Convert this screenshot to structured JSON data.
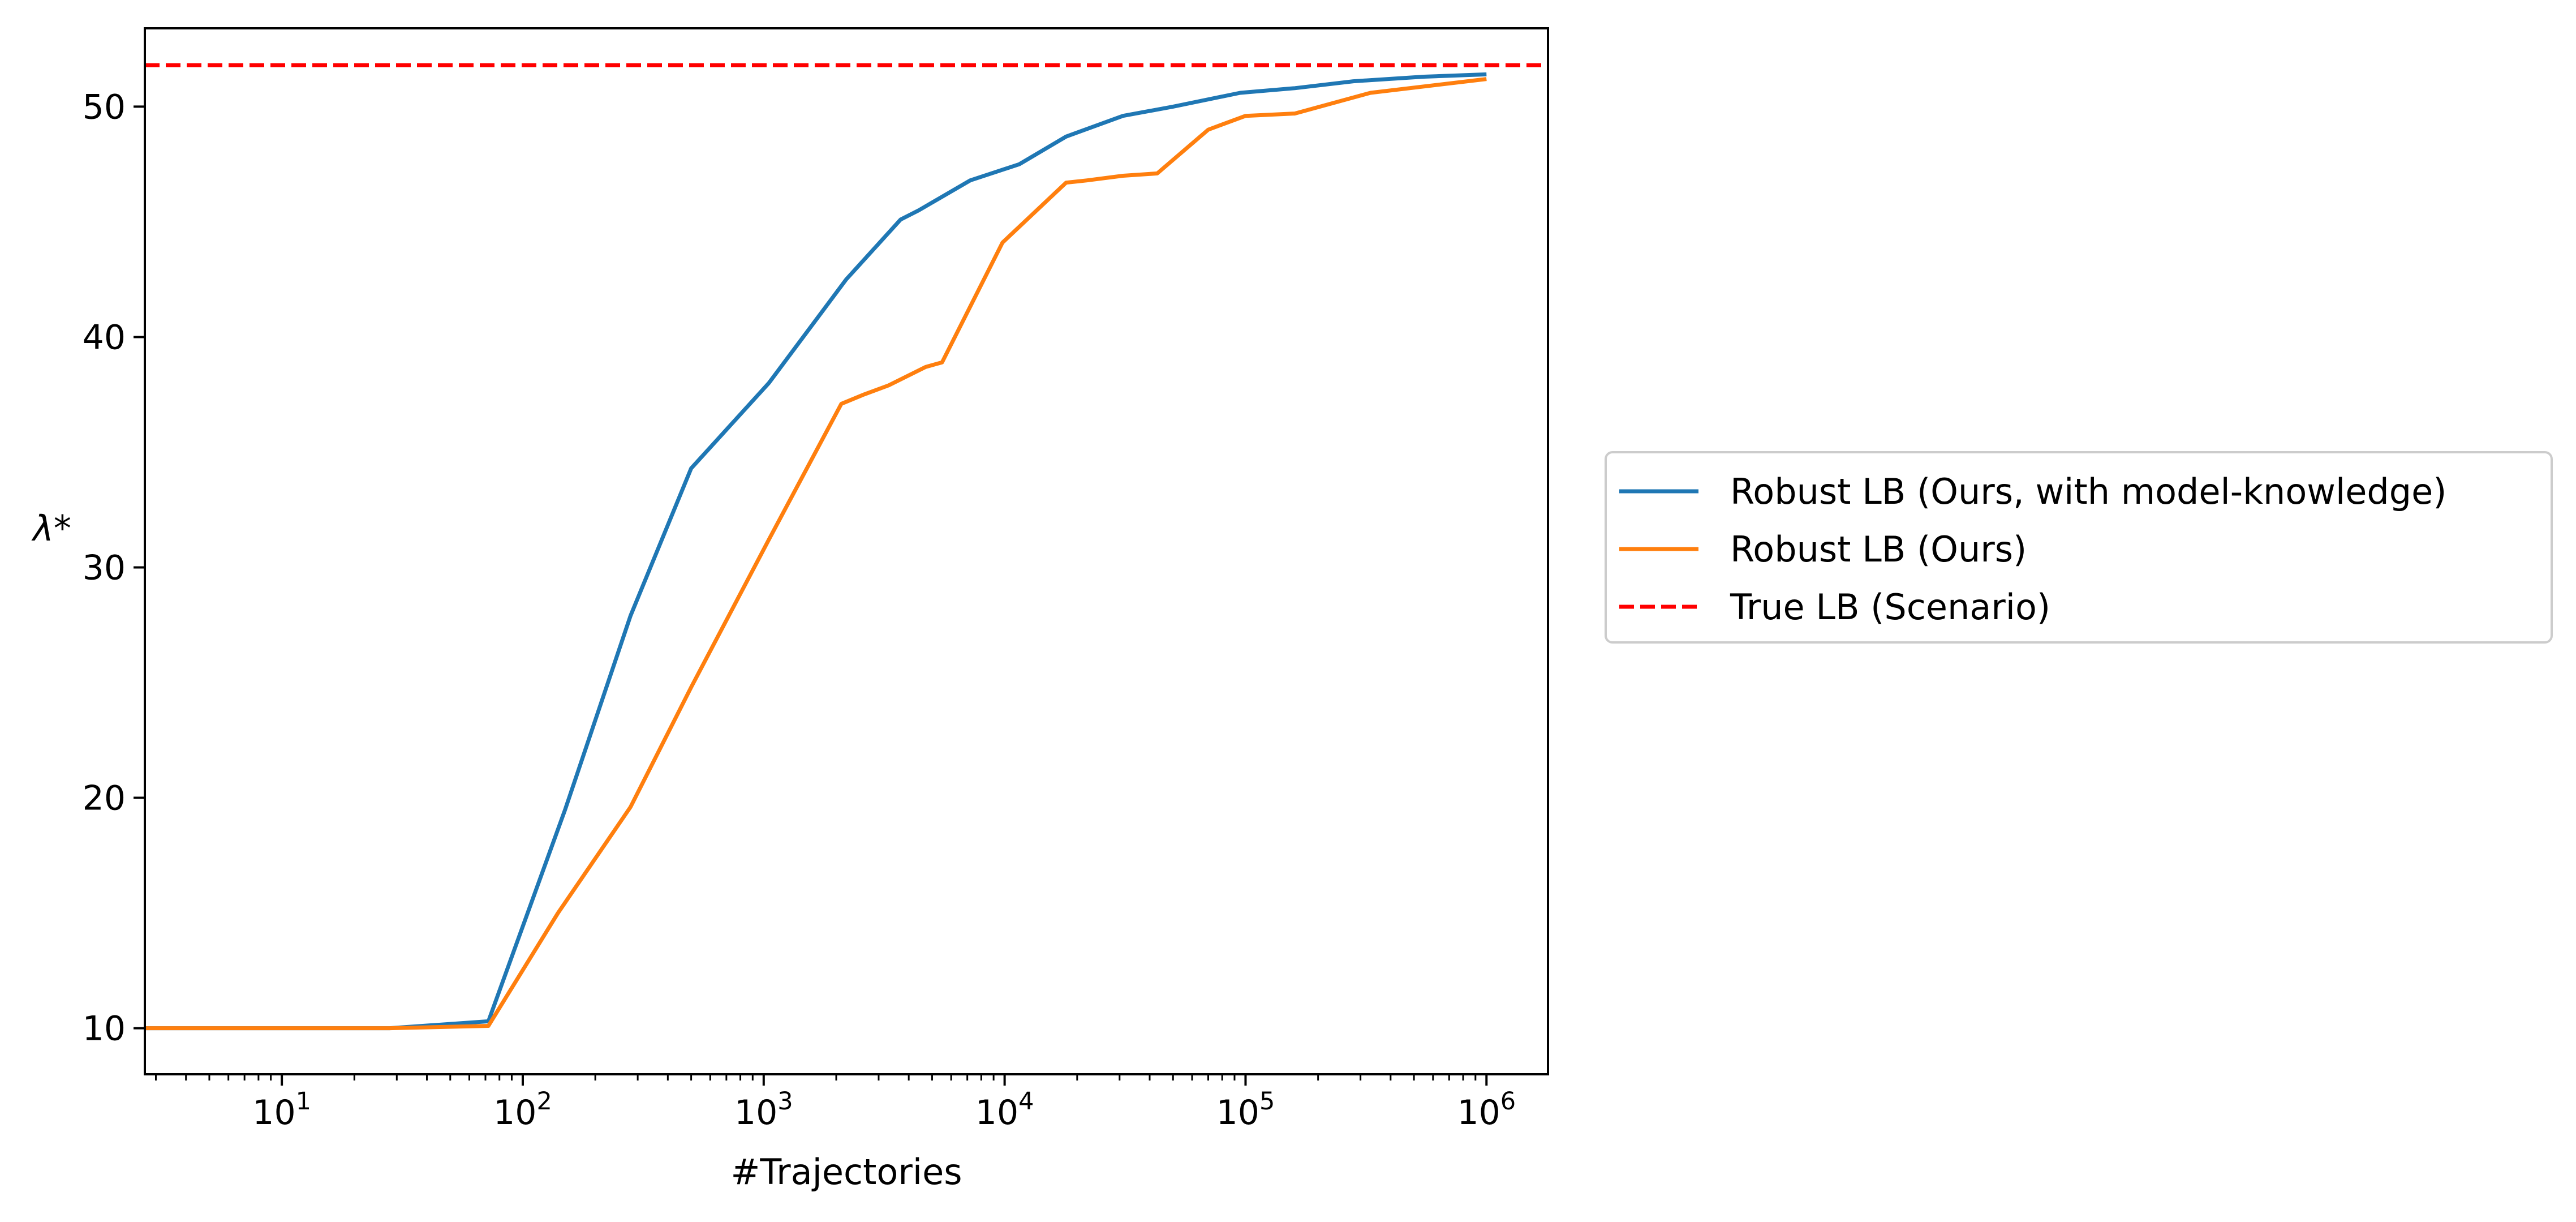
{
  "chart_data": {
    "type": "line",
    "title": "",
    "xlabel": "#Trajectories",
    "ylabel": "λ*",
    "xscale": "log",
    "xlim": [
      2.7,
      1800000
    ],
    "ylim": [
      8.0,
      53.4
    ],
    "x_ticks": [
      10,
      100,
      1000,
      10000,
      100000,
      1000000
    ],
    "x_tick_labels": [
      {
        "base": "10",
        "exp": "1"
      },
      {
        "base": "10",
        "exp": "2"
      },
      {
        "base": "10",
        "exp": "3"
      },
      {
        "base": "10",
        "exp": "4"
      },
      {
        "base": "10",
        "exp": "5"
      },
      {
        "base": "10",
        "exp": "6"
      }
    ],
    "y_ticks": [
      10,
      20,
      30,
      40,
      50
    ],
    "y_tick_labels": [
      "10",
      "20",
      "30",
      "40",
      "50"
    ],
    "grid": false,
    "legend_position": "right",
    "series": [
      {
        "name": "Robust LB (Ours, with model-knowledge)",
        "color": "#1f77b4",
        "style": "solid",
        "points": [
          [
            2.7,
            10.0
          ],
          [
            28,
            10.0
          ],
          [
            72,
            10.3
          ],
          [
            150,
            19.5
          ],
          [
            280,
            27.9
          ],
          [
            500,
            34.3
          ],
          [
            1050,
            38.0
          ],
          [
            2200,
            42.5
          ],
          [
            3700,
            45.1
          ],
          [
            4400,
            45.5
          ],
          [
            7200,
            46.8
          ],
          [
            11500,
            47.5
          ],
          [
            18000,
            48.7
          ],
          [
            31000,
            49.6
          ],
          [
            50000,
            50.0
          ],
          [
            95000,
            50.6
          ],
          [
            160000,
            50.8
          ],
          [
            280000,
            51.1
          ],
          [
            550000,
            51.3
          ],
          [
            1000000,
            51.4
          ]
        ]
      },
      {
        "name": "Robust LB (Ours)",
        "color": "#ff7f0e",
        "style": "solid",
        "points": [
          [
            2.7,
            10.0
          ],
          [
            28,
            10.0
          ],
          [
            72,
            10.1
          ],
          [
            140,
            15.0
          ],
          [
            280,
            19.6
          ],
          [
            500,
            24.8
          ],
          [
            1050,
            31.2
          ],
          [
            2100,
            37.1
          ],
          [
            2600,
            37.5
          ],
          [
            3300,
            37.9
          ],
          [
            4700,
            38.7
          ],
          [
            5500,
            38.9
          ],
          [
            9800,
            44.1
          ],
          [
            18000,
            46.7
          ],
          [
            22000,
            46.8
          ],
          [
            31000,
            47.0
          ],
          [
            43000,
            47.1
          ],
          [
            70000,
            49.0
          ],
          [
            100000,
            49.6
          ],
          [
            160000,
            49.7
          ],
          [
            330000,
            50.6
          ],
          [
            1000000,
            51.2
          ]
        ]
      },
      {
        "name": "True LB (Scenario)",
        "color": "#ff0000",
        "style": "dashed",
        "points": [
          [
            2.7,
            51.8
          ],
          [
            1800000,
            51.8
          ]
        ]
      }
    ]
  }
}
